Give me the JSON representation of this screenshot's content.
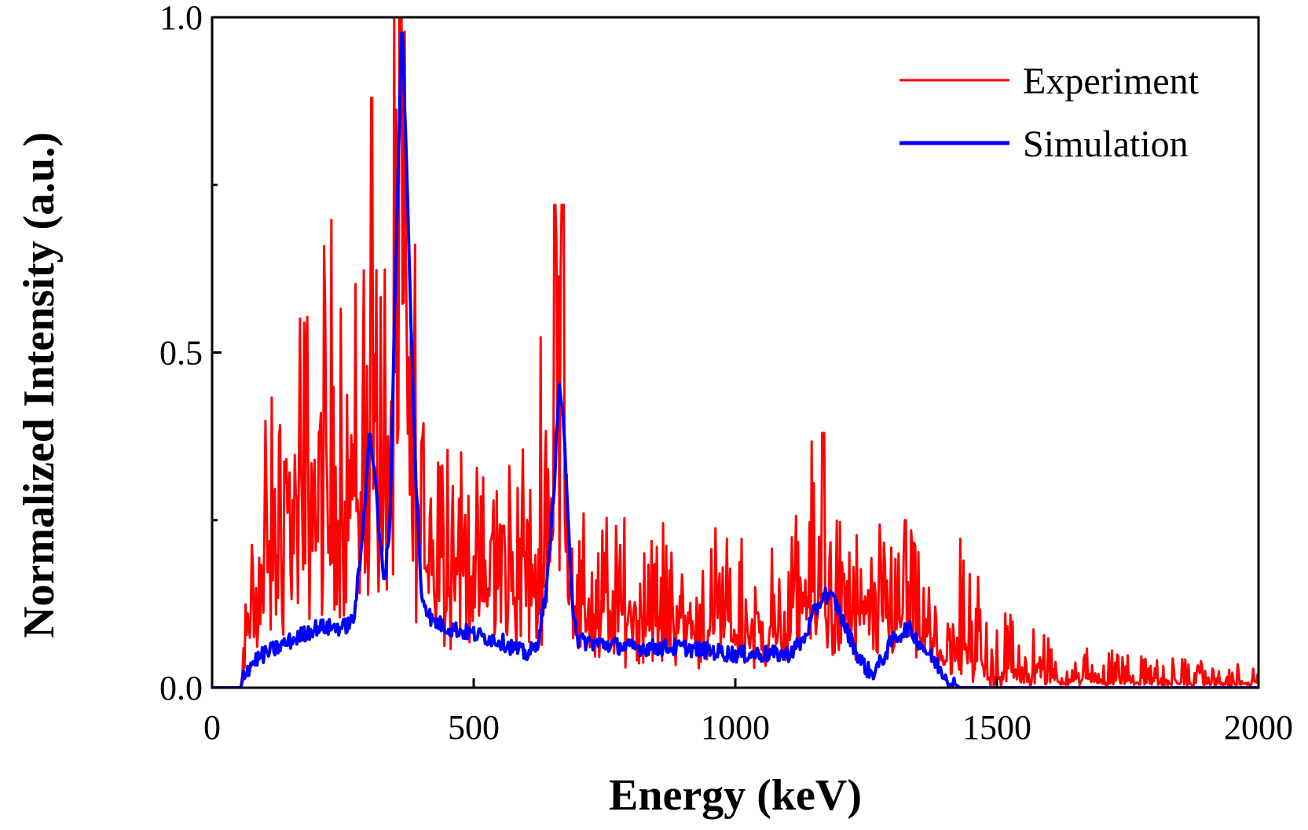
{
  "chart_data": {
    "type": "line",
    "title": "",
    "xlabel": "Energy (keV)",
    "ylabel": "Normalized Intensity (a.u.)",
    "xlim": [
      0,
      2000
    ],
    "ylim": [
      0,
      1.0
    ],
    "x_ticks": [
      {
        "value": 0,
        "label": "0"
      },
      {
        "value": 500,
        "label": "500"
      },
      {
        "value": 1000,
        "label": "1000"
      },
      {
        "value": 1500,
        "label": "1500"
      },
      {
        "value": 2000,
        "label": "2000"
      }
    ],
    "y_ticks": [
      {
        "value": 0.0,
        "label": "0.0"
      },
      {
        "value": 0.5,
        "label": "0.5"
      },
      {
        "value": 1.0,
        "label": "1.0"
      }
    ],
    "y_minor_ticks": [
      0.25,
      0.75
    ],
    "grid": false,
    "legend_position": "top-right",
    "series": [
      {
        "name": "Experiment",
        "color": "#ff0000",
        "style": "noisy",
        "envelope": [
          [
            0,
            0
          ],
          [
            55,
            0
          ],
          [
            62,
            0.08
          ],
          [
            75,
            0.18
          ],
          [
            100,
            0.3
          ],
          [
            150,
            0.4
          ],
          [
            200,
            0.48
          ],
          [
            250,
            0.52
          ],
          [
            300,
            0.55
          ],
          [
            330,
            0.52
          ],
          [
            355,
            0.7
          ],
          [
            365,
            0.85
          ],
          [
            380,
            0.55
          ],
          [
            400,
            0.4
          ],
          [
            450,
            0.32
          ],
          [
            500,
            0.28
          ],
          [
            600,
            0.26
          ],
          [
            620,
            0.26
          ],
          [
            650,
            0.55
          ],
          [
            665,
            0.62
          ],
          [
            685,
            0.4
          ],
          [
            700,
            0.2
          ],
          [
            800,
            0.19
          ],
          [
            900,
            0.17
          ],
          [
            1000,
            0.15
          ],
          [
            1100,
            0.15
          ],
          [
            1130,
            0.22
          ],
          [
            1170,
            0.26
          ],
          [
            1200,
            0.2
          ],
          [
            1250,
            0.15
          ],
          [
            1320,
            0.2
          ],
          [
            1350,
            0.15
          ],
          [
            1400,
            0.08
          ],
          [
            1450,
            0.05
          ],
          [
            1500,
            0.03
          ],
          [
            1600,
            0.02
          ],
          [
            1700,
            0.015
          ],
          [
            1800,
            0.012
          ],
          [
            2000,
            0.008
          ]
        ],
        "peaks": [
          [
            305,
            0.88
          ],
          [
            360,
            1.0
          ],
          [
            655,
            0.72
          ],
          [
            670,
            0.72
          ],
          [
            1168,
            0.38
          ],
          [
            1325,
            0.25
          ]
        ]
      },
      {
        "name": "Simulation",
        "color": "#0000ff",
        "style": "smooth",
        "points": [
          [
            0,
            0
          ],
          [
            55,
            0
          ],
          [
            60,
            0.02
          ],
          [
            80,
            0.04
          ],
          [
            100,
            0.05
          ],
          [
            150,
            0.07
          ],
          [
            200,
            0.09
          ],
          [
            250,
            0.09
          ],
          [
            270,
            0.1
          ],
          [
            285,
            0.2
          ],
          [
            300,
            0.38
          ],
          [
            310,
            0.33
          ],
          [
            320,
            0.22
          ],
          [
            330,
            0.16
          ],
          [
            340,
            0.25
          ],
          [
            350,
            0.6
          ],
          [
            358,
            0.85
          ],
          [
            363,
            1.0
          ],
          [
            370,
            0.82
          ],
          [
            380,
            0.55
          ],
          [
            390,
            0.3
          ],
          [
            400,
            0.14
          ],
          [
            420,
            0.1
          ],
          [
            450,
            0.09
          ],
          [
            500,
            0.08
          ],
          [
            550,
            0.07
          ],
          [
            600,
            0.05
          ],
          [
            620,
            0.06
          ],
          [
            640,
            0.15
          ],
          [
            655,
            0.32
          ],
          [
            663,
            0.45
          ],
          [
            670,
            0.42
          ],
          [
            680,
            0.25
          ],
          [
            690,
            0.12
          ],
          [
            700,
            0.07
          ],
          [
            800,
            0.06
          ],
          [
            900,
            0.06
          ],
          [
            1000,
            0.05
          ],
          [
            1100,
            0.05
          ],
          [
            1130,
            0.07
          ],
          [
            1150,
            0.11
          ],
          [
            1170,
            0.14
          ],
          [
            1190,
            0.13
          ],
          [
            1210,
            0.09
          ],
          [
            1240,
            0.04
          ],
          [
            1260,
            0.02
          ],
          [
            1280,
            0.04
          ],
          [
            1300,
            0.07
          ],
          [
            1330,
            0.09
          ],
          [
            1350,
            0.07
          ],
          [
            1380,
            0.04
          ],
          [
            1410,
            0.01
          ],
          [
            1430,
            0
          ],
          [
            2000,
            0
          ]
        ]
      }
    ]
  }
}
